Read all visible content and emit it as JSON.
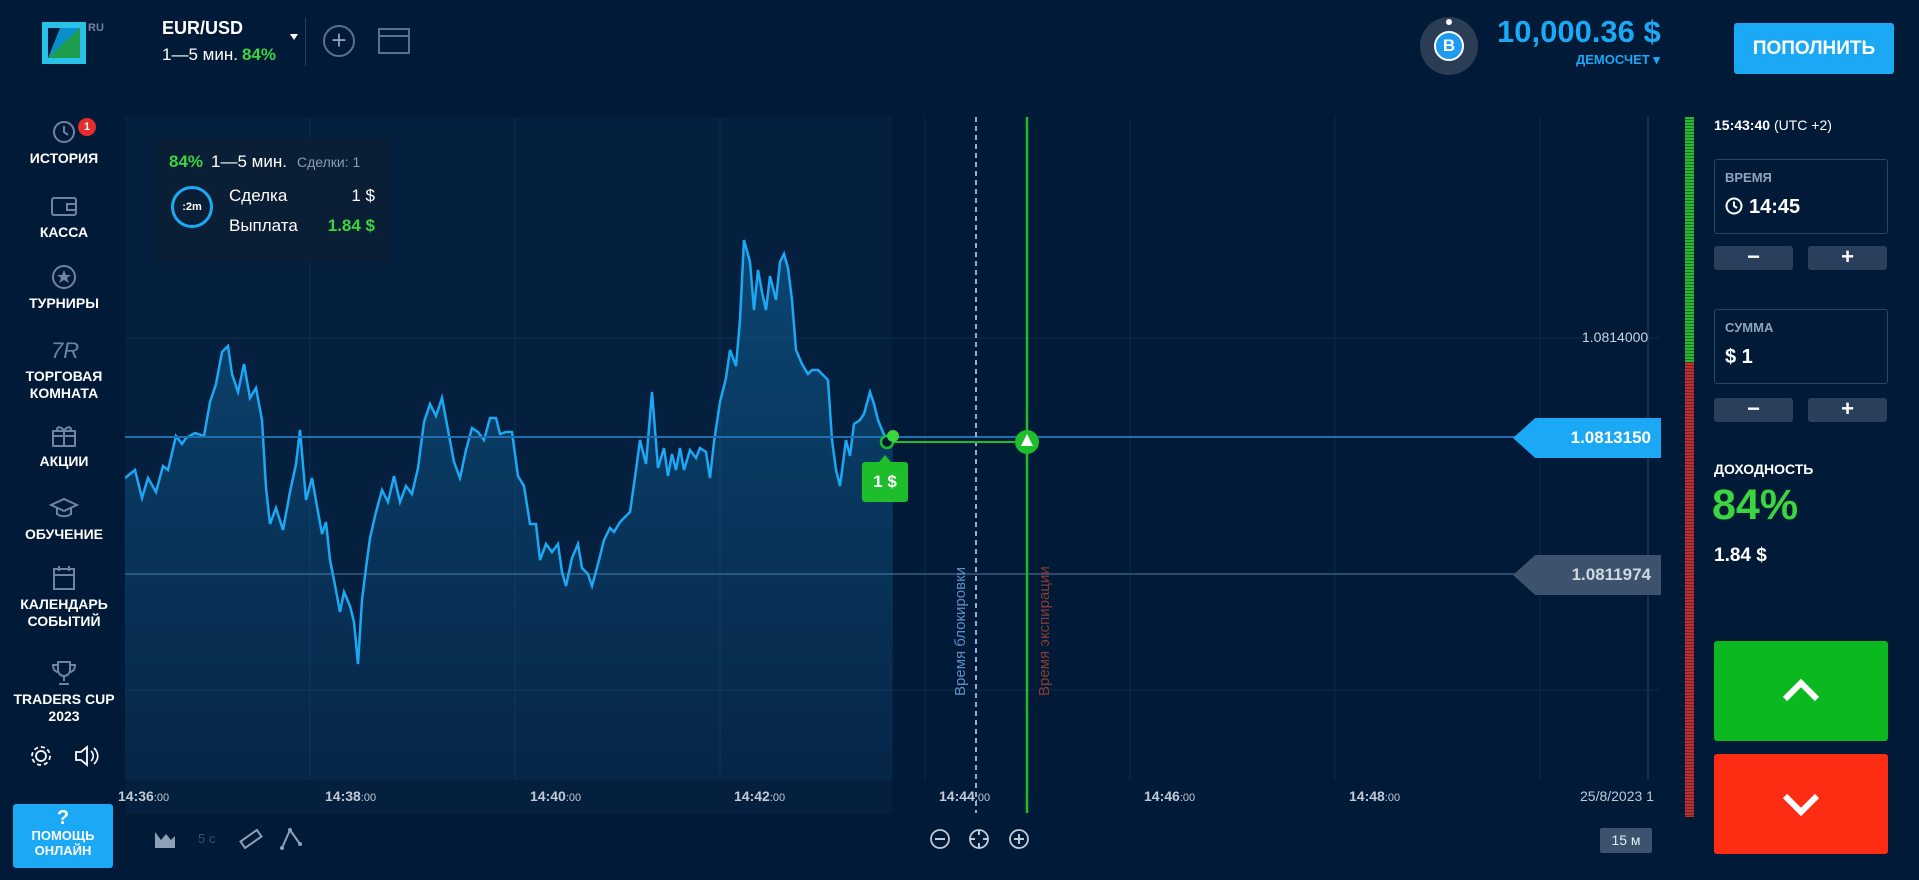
{
  "header": {
    "logo_suffix": "RU",
    "asset": "EUR/USD",
    "asset_duration": "1—5 мин.",
    "asset_payout": "84%",
    "avatar_letter": "B",
    "balance": "10,000.36 $",
    "account_type": "ДЕМОСЧЕТ ▾",
    "deposit_label": "ПОПОЛНИТЬ"
  },
  "sidebar": {
    "items": [
      {
        "label": "ИСТОРИЯ",
        "badge": "1",
        "icon": "history-icon"
      },
      {
        "label": "КАССА",
        "icon": "wallet-icon"
      },
      {
        "label": "ТУРНИРЫ",
        "icon": "star-icon"
      },
      {
        "label": "ТОРГОВАЯ\nКОМНАТА",
        "icon": "trading-room-icon"
      },
      {
        "label": "АКЦИИ",
        "icon": "gift-icon"
      },
      {
        "label": "ОБУЧЕНИЕ",
        "icon": "graduation-cap-icon"
      },
      {
        "label": "КАЛЕНДАРЬ\nСОБЫТИЙ",
        "icon": "calendar-icon"
      },
      {
        "label": "TRADERS CUP\n2023",
        "icon": "trophy-icon"
      }
    ],
    "help_q": "?",
    "help_label": "ПОМОЩЬ\nОНЛАЙН"
  },
  "deal_info": {
    "payout": "84%",
    "duration": "1—5 мин.",
    "deals": "Сделки: 1",
    "timer": ":2m",
    "deal_label": "Сделка",
    "deal_value": "1 $",
    "payout_label": "Выплата",
    "payout_value": "1.84 $"
  },
  "chart": {
    "current_price": "1.0813150",
    "low_price": "1.0811974",
    "grid_price": "1.0814000",
    "bet_badge": "1 $",
    "lock_time_label": "Время блокировки",
    "expiry_label": "Время экспирации",
    "date": "25/8/2023 1",
    "timeframe": "15 м",
    "tf_hint": "5 с",
    "time_labels": [
      {
        "main": "14:36",
        "sec": ":00"
      },
      {
        "main": "14:38",
        "sec": ":00"
      },
      {
        "main": "14:40",
        "sec": ":00"
      },
      {
        "main": "14:42",
        "sec": ":00"
      },
      {
        "main": "14:44",
        "sec": ":00"
      },
      {
        "main": "14:46",
        "sec": ":00"
      },
      {
        "main": "14:48",
        "sec": ":00"
      }
    ],
    "colors": {
      "line": "#1ba8f5",
      "expiry": "#1ebd2c",
      "lock": "#7fb3e6"
    }
  },
  "panel": {
    "clock": "15:43:40",
    "tz": "(UTC +2)",
    "time_label": "ВРЕМЯ",
    "time_value": "14:45",
    "amount_label": "СУММА",
    "amount_value": "$ 1",
    "minus": "−",
    "plus": "+",
    "yield_label": "ДОХОДНОСТЬ",
    "yield_pct": "84%",
    "yield_amount": "1.84 $"
  }
}
